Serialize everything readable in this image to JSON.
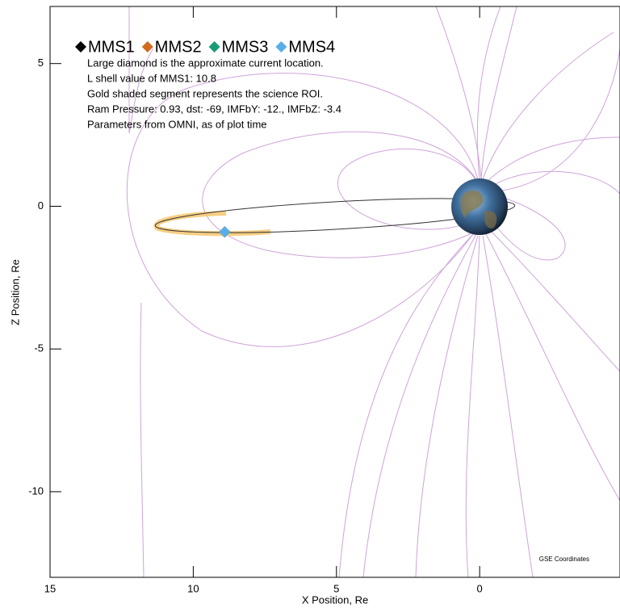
{
  "chart_data": {
    "type": "scatter",
    "series": [
      {
        "name": "MMS1",
        "color": "#000000",
        "x": [
          8.9
        ],
        "values": [
          -0.9
        ]
      },
      {
        "name": "MMS2",
        "color": "#d2691e",
        "x": [
          8.9
        ],
        "values": [
          -0.9
        ]
      },
      {
        "name": "MMS3",
        "color": "#1a9b77",
        "x": [
          8.9
        ],
        "values": [
          -0.9
        ]
      },
      {
        "name": "MMS4",
        "color": "#5aaee8",
        "x": [
          8.9
        ],
        "values": [
          -0.9
        ]
      }
    ],
    "notes": [
      "Large diamond is the approximate current location.",
      "L shell value of MMS1: 10.8",
      "Gold shaded segment represents the science ROI.",
      "Ram Pressure: 0.93, dst: -69, IMFbY: -12., IMFbZ: -3.4",
      "Parameters from OMNI, as of plot time"
    ],
    "annotation": "GSE Coordinates",
    "x_label": "X Position, Re",
    "y_label": "Z Position, Re",
    "xlim": [
      15,
      -4.9
    ],
    "ylim": [
      -13,
      7
    ],
    "xticks": [
      15,
      10,
      5,
      0
    ],
    "yticks": [
      5,
      0,
      -5,
      -10
    ]
  }
}
